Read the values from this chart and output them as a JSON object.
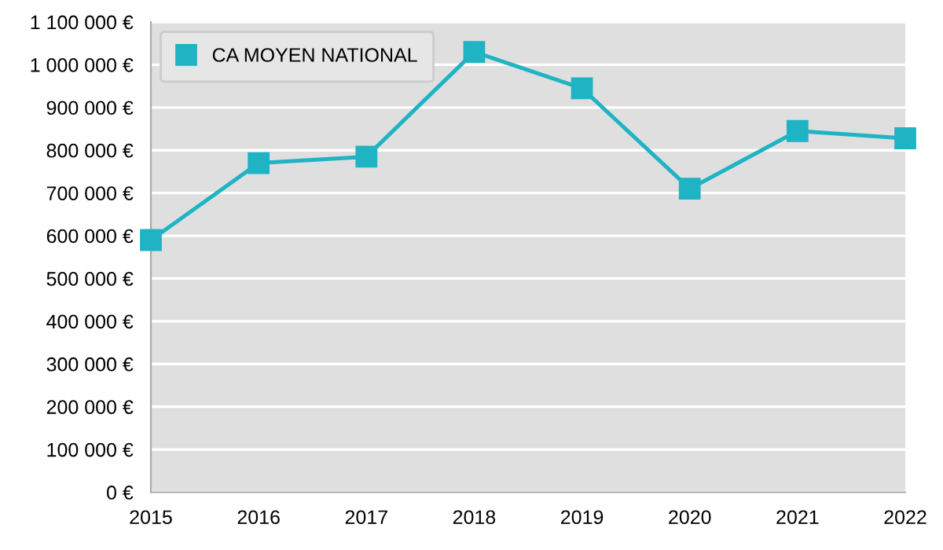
{
  "chart_data": {
    "type": "line",
    "categories": [
      "2015",
      "2016",
      "2017",
      "2018",
      "2019",
      "2020",
      "2021",
      "2022"
    ],
    "series": [
      {
        "name": "CA MOYEN NATIONAL",
        "color": "#1fb3c4",
        "values": [
          590000,
          770000,
          785000,
          1030000,
          945000,
          710000,
          845000,
          828000
        ]
      }
    ],
    "ylim": [
      0,
      1100000
    ],
    "yticks": [
      {
        "value": 0,
        "label": "0 €"
      },
      {
        "value": 100000,
        "label": "100 000 €"
      },
      {
        "value": 200000,
        "label": "200 000 €"
      },
      {
        "value": 300000,
        "label": "300 000 €"
      },
      {
        "value": 400000,
        "label": "400 000 €"
      },
      {
        "value": 500000,
        "label": "500 000 €"
      },
      {
        "value": 600000,
        "label": "600 000 €"
      },
      {
        "value": 700000,
        "label": "700 000 €"
      },
      {
        "value": 800000,
        "label": "800 000 €"
      },
      {
        "value": 900000,
        "label": "900 000 €"
      },
      {
        "value": 1000000,
        "label": "1 000 000 €"
      },
      {
        "value": 1100000,
        "label": "1 100 000 €"
      }
    ],
    "grid": "y",
    "legend": "top left",
    "marker": "square",
    "line_style": "solid"
  }
}
